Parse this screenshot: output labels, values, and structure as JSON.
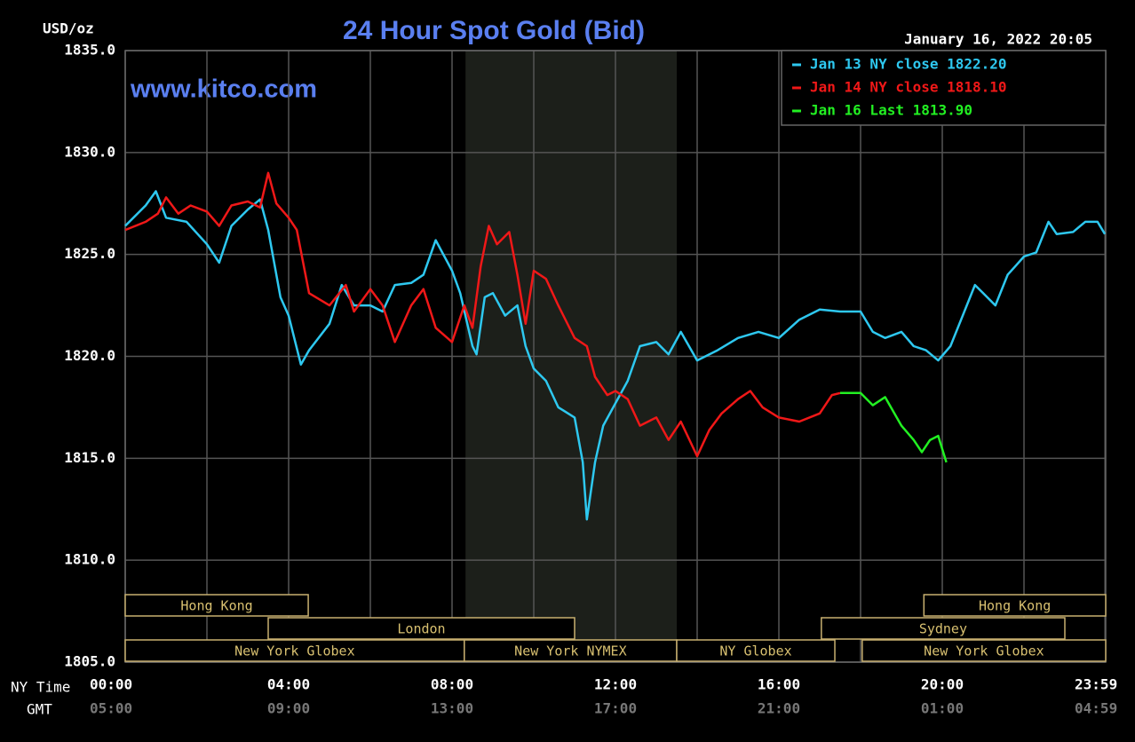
{
  "chart_data": {
    "type": "line",
    "title": "24 Hour Spot Gold (Bid)",
    "subtitle": "www.kitco.com",
    "timestamp": "January 16, 2022 20:05",
    "ylabel": "USD/oz",
    "xlabel_rows": [
      "NY Time",
      "GMT"
    ],
    "xlim": [
      0,
      24
    ],
    "ylim": [
      1805,
      1835
    ],
    "yticks": [
      {
        "value": 1805,
        "label": "1805.0"
      },
      {
        "value": 1810,
        "label": "1810.0"
      },
      {
        "value": 1815,
        "label": "1815.0"
      },
      {
        "value": 1820,
        "label": "1820.0"
      },
      {
        "value": 1825,
        "label": "1825.0"
      },
      {
        "value": 1830,
        "label": "1830.0"
      },
      {
        "value": 1835,
        "label": "1835.0"
      }
    ],
    "xticks": [
      {
        "value": 0,
        "label": "00:00"
      },
      {
        "value": 4,
        "label": "04:00"
      },
      {
        "value": 8,
        "label": "08:00"
      },
      {
        "value": 12,
        "label": "12:00"
      },
      {
        "value": 16,
        "label": "16:00"
      },
      {
        "value": 20,
        "label": "20:00"
      },
      {
        "value": 23.983,
        "label": "23:59"
      }
    ],
    "gmt_labels": [
      "05:00",
      "09:00",
      "13:00",
      "17:00",
      "21:00",
      "01:00",
      "04:59"
    ],
    "minor_xticks": [
      2,
      6,
      10,
      14,
      18,
      22
    ],
    "grid": true,
    "highlight_range": [
      8.33,
      13.5
    ],
    "legend": "upper right",
    "sessions": [
      {
        "label": "Hong Kong",
        "start": 0,
        "end": 4.48,
        "row": 0
      },
      {
        "label": "London",
        "start": 3.5,
        "end": 11.0,
        "row": 1
      },
      {
        "label": "New York Globex",
        "start": 0,
        "end": 8.3,
        "row": 2
      },
      {
        "label": "New York NYMEX",
        "start": 8.3,
        "end": 13.5,
        "row": 2
      },
      {
        "label": "NY Globex",
        "start": 13.5,
        "end": 17.37,
        "row": 2
      },
      {
        "label": "Hong Kong",
        "start": 19.55,
        "end": 24,
        "row": 0
      },
      {
        "label": "Sydney",
        "start": 17.04,
        "end": 23.0,
        "row": 1
      },
      {
        "label": "New York Globex",
        "start": 18.04,
        "end": 24,
        "row": 2
      }
    ],
    "series": [
      {
        "name": "Jan 13 NY close 1822.20",
        "color": "#2ec8f0",
        "x": [
          0,
          0.5,
          0.75,
          1,
          1.5,
          2,
          2.3,
          2.6,
          3,
          3.3,
          3.5,
          3.8,
          4,
          4.3,
          4.5,
          5,
          5.3,
          5.6,
          6,
          6.3,
          6.6,
          7,
          7.3,
          7.6,
          8,
          8.2,
          8.5,
          8.6,
          8.8,
          9,
          9.3,
          9.6,
          9.8,
          10,
          10.3,
          10.6,
          11,
          11.2,
          11.3,
          11.5,
          11.7,
          12,
          12.3,
          12.6,
          13,
          13.3,
          13.6,
          14,
          14.5,
          15,
          15.5,
          16,
          16.5,
          17,
          17.5,
          18,
          18.3,
          18.6,
          19,
          19.3,
          19.6,
          19.9,
          20.2,
          20.5,
          20.8,
          21,
          21.3,
          21.6,
          22,
          22.3,
          22.6,
          22.8,
          23.2,
          23.5,
          23.8,
          23.98
        ],
        "values": [
          1826.4,
          1827.4,
          1828.1,
          1826.8,
          1826.6,
          1825.5,
          1824.6,
          1826.4,
          1827.2,
          1827.7,
          1826.2,
          1822.9,
          1822.0,
          1819.6,
          1820.3,
          1821.6,
          1823.5,
          1822.5,
          1822.5,
          1822.2,
          1823.5,
          1823.6,
          1824.0,
          1825.7,
          1824.2,
          1823.1,
          1820.5,
          1820.1,
          1822.9,
          1823.1,
          1822.0,
          1822.5,
          1820.5,
          1819.4,
          1818.8,
          1817.5,
          1817.0,
          1814.8,
          1812.0,
          1814.8,
          1816.6,
          1817.7,
          1818.8,
          1820.5,
          1820.7,
          1820.1,
          1821.2,
          1819.8,
          1820.3,
          1820.9,
          1821.2,
          1820.9,
          1821.8,
          1822.3,
          1822.2,
          1822.2,
          1821.2,
          1820.9,
          1821.2,
          1820.5,
          1820.3,
          1819.8,
          1820.5,
          1822.0,
          1823.5,
          1823.1,
          1822.5,
          1824.0,
          1824.9,
          1825.1,
          1826.6,
          1826.0,
          1826.1,
          1826.6,
          1826.6,
          1826.0
        ]
      },
      {
        "name": "Jan 14 NY close 1818.10",
        "color": "#f01818",
        "x": [
          0,
          0.5,
          0.8,
          1,
          1.3,
          1.6,
          2,
          2.3,
          2.6,
          3,
          3.3,
          3.5,
          3.7,
          4,
          4.2,
          4.5,
          5,
          5.4,
          5.6,
          6,
          6.3,
          6.6,
          7,
          7.3,
          7.6,
          8,
          8.3,
          8.5,
          8.7,
          8.9,
          9.1,
          9.4,
          9.6,
          9.8,
          10,
          10.3,
          10.6,
          11,
          11.3,
          11.5,
          11.8,
          12,
          12.3,
          12.6,
          13,
          13.3,
          13.6,
          14,
          14.3,
          14.6,
          15,
          15.3,
          15.6,
          16,
          16.5,
          17,
          17.3,
          17.5
        ],
        "values": [
          1826.2,
          1826.6,
          1827.0,
          1827.8,
          1827.0,
          1827.4,
          1827.1,
          1826.4,
          1827.4,
          1827.6,
          1827.3,
          1829.0,
          1827.5,
          1826.8,
          1826.2,
          1823.1,
          1822.5,
          1823.5,
          1822.2,
          1823.3,
          1822.5,
          1820.7,
          1822.5,
          1823.3,
          1821.4,
          1820.7,
          1822.5,
          1821.4,
          1824.4,
          1826.4,
          1825.5,
          1826.1,
          1824.0,
          1821.6,
          1824.2,
          1823.8,
          1822.5,
          1820.9,
          1820.5,
          1819.0,
          1818.1,
          1818.3,
          1817.9,
          1816.6,
          1817.0,
          1815.9,
          1816.8,
          1815.1,
          1816.4,
          1817.2,
          1817.9,
          1818.3,
          1817.5,
          1817.0,
          1816.8,
          1817.2,
          1818.1,
          1818.2
        ]
      },
      {
        "name": "Jan 16 Last 1813.90",
        "color": "#22f022",
        "x": [
          17.5,
          18,
          18.3,
          18.6,
          19,
          19.3,
          19.5,
          19.7,
          19.9,
          20.1
        ],
        "values": [
          1818.2,
          1818.2,
          1817.6,
          1818.0,
          1816.6,
          1815.9,
          1815.3,
          1815.9,
          1816.1,
          1814.8
        ]
      }
    ]
  }
}
